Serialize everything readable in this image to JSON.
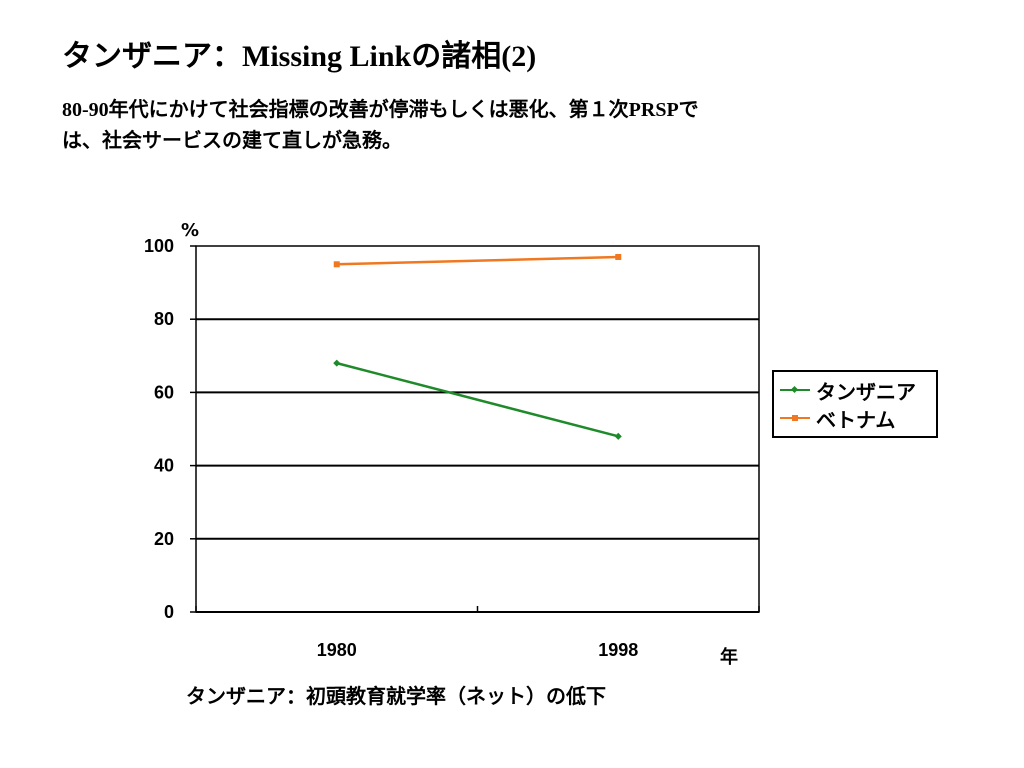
{
  "slide": {
    "title_jp1": "タンザニア",
    "title_colon": "：",
    "title_latin": "Missing Link",
    "title_jp2": "の諸相",
    "title_num": "(2)",
    "subtitle_latin": "80-90",
    "subtitle_line1": "年代にかけて社会指標の改善が停滞もしくは悪化、第１次",
    "subtitle_latin2": "PRSP",
    "subtitle_line1_end": "で",
    "subtitle_line2": "は、社会サービスの建て直しが急務。",
    "caption": "タンザニア：初頭教育就学率（ネット）の低下"
  },
  "chart_data": {
    "type": "line",
    "categories": [
      "1980",
      "1998"
    ],
    "series": [
      {
        "name": "タンザニア",
        "values": [
          68,
          48
        ],
        "color": "#1f8a2a",
        "marker": "diamond"
      },
      {
        "name": "ベトナム",
        "values": [
          95,
          97
        ],
        "color": "#f07820",
        "marker": "square"
      }
    ],
    "ylabel": "%",
    "xlabel": "年",
    "ylim": [
      0,
      100
    ],
    "yticks": [
      0,
      20,
      40,
      60,
      80,
      100
    ],
    "grid": true,
    "legend_position": "right"
  }
}
